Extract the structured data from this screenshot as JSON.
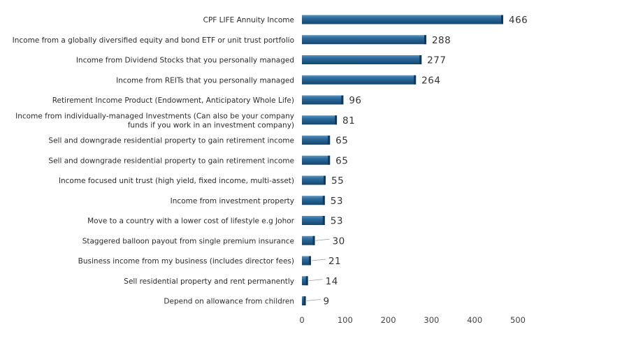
{
  "chart_data": {
    "type": "bar",
    "orientation": "horizontal",
    "title": "",
    "xlabel": "",
    "ylabel": "",
    "xlim": [
      0,
      500
    ],
    "xticks": [
      0,
      100,
      200,
      300,
      400,
      500
    ],
    "grid": false,
    "legend": "none",
    "bar_color": "#1f5b8c",
    "categories": [
      [
        "CPF LIFE Annuity Income"
      ],
      [
        "Income from a globally diversified equity and bond  ETF or unit trust portfolio"
      ],
      [
        "Income from Dividend Stocks that you personally managed"
      ],
      [
        "Income from REITs that you personally managed"
      ],
      [
        "Retirement Income Product (Endowment, Anticipatory Whole Life)"
      ],
      [
        "Income from individually-managed Investments (Can also be your company",
        "funds if you work in an investment company)"
      ],
      [
        "Sell and downgrade residential property to gain retirement income"
      ],
      [
        "Sell and downgrade residential property to gain retirement income"
      ],
      [
        "Income focused unit trust (high yield, fixed income, multi-asset)"
      ],
      [
        "Income from investment property"
      ],
      [
        "Move to a country with a lower cost of lifestyle e.g Johor"
      ],
      [
        "Staggered balloon payout from single premium insurance"
      ],
      [
        "Business income from my business (includes director fees)"
      ],
      [
        "Sell residential property and rent permanently"
      ],
      [
        "Depend on allowance from children"
      ]
    ],
    "values": [
      466,
      288,
      277,
      264,
      96,
      81,
      65,
      65,
      55,
      53,
      53,
      30,
      21,
      14,
      9
    ]
  }
}
